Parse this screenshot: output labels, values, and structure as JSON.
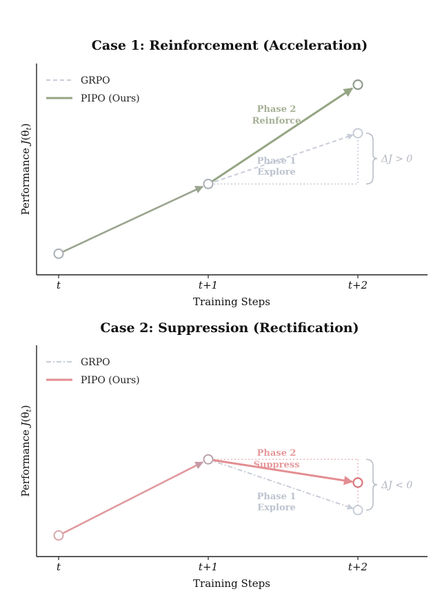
{
  "chart_data": [
    {
      "type": "line",
      "title": "Case 1: Reinforcement (Acceleration)",
      "xlabel": "Training Steps",
      "ylabel": "Performance J(θ_t)",
      "ylabel_main": "Performance ",
      "ylabel_sym": "J",
      "ylabel_arg": "(θ",
      "ylabel_sub": "t",
      "ylabel_close": ")",
      "categories": [
        "t",
        "t+1",
        "t+2"
      ],
      "ylim": [
        0,
        10
      ],
      "legend_position": "top-left",
      "series": [
        {
          "name": "GRPO",
          "style": "dashed",
          "color": "#c8cdd8",
          "values": [
            1.0,
            4.3,
            6.7
          ]
        },
        {
          "name": "PIPO (Ours)",
          "style": "solid",
          "color": "#95a583",
          "values": [
            1.0,
            4.3,
            9.0
          ]
        }
      ],
      "annotations": {
        "phase2": {
          "line1": "Phase 2",
          "line2": "Reinforce"
        },
        "phase1": {
          "line1": "Phase 1",
          "line2": "Explore"
        },
        "delta": "ΔJ > 0"
      }
    },
    {
      "type": "line",
      "title": "Case 2: Suppression (Rectification)",
      "xlabel": "Training Steps",
      "ylabel": "Performance J(θ_t)",
      "ylabel_main": "Performance ",
      "ylabel_sym": "J",
      "ylabel_arg": "(θ",
      "ylabel_sub": "t",
      "ylabel_close": ")",
      "categories": [
        "t",
        "t+1",
        "t+2"
      ],
      "ylim": [
        0,
        10
      ],
      "legend_position": "top-left",
      "series": [
        {
          "name": "GRPO",
          "style": "dashdot",
          "color": "#c8cdd8",
          "values": [
            1.0,
            4.6,
            2.2
          ]
        },
        {
          "name": "PIPO (Ours)",
          "style": "solid",
          "color": "#e38d91",
          "values": [
            1.0,
            4.6,
            3.5
          ]
        }
      ],
      "annotations": {
        "phase2": {
          "line1": "Phase 2",
          "line2": "Suppress"
        },
        "phase1": {
          "line1": "Phase 1",
          "line2": "Explore"
        },
        "delta": "ΔJ < 0"
      }
    }
  ]
}
